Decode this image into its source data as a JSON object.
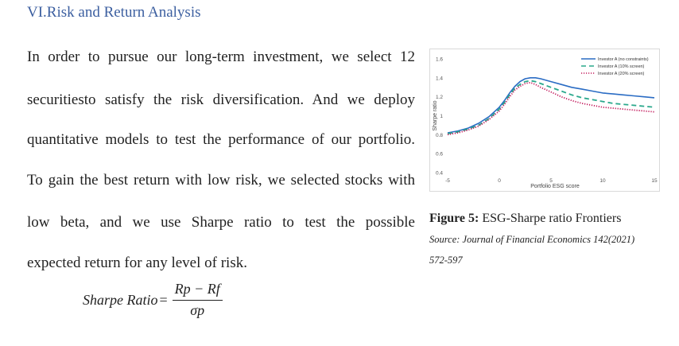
{
  "heading": "VI.Risk and Return Analysis",
  "paragraph_lines": [
    "In order to pursue our long-term investment, we select 12",
    "securitiesto satisfy the risk diversification. And we deploy",
    "quantitative models to test the performance of our portfolio.",
    "To gain the best return with low risk, we selected stocks with",
    "low beta, and we use Sharpe ratio to test the possible",
    "expected return for any level of risk."
  ],
  "formula": {
    "lhs": "Sharpe Ratio",
    "equals": "=",
    "numerator": "Rp − Rf",
    "denominator": "σp"
  },
  "figure": {
    "caption_label": "Figure 5:",
    "caption_text": " ESG-Sharpe ratio Frontiers",
    "source_line1": "Source: Journal of Financial Economics 142(2021)",
    "source_line2": "572-597"
  },
  "chart_data": {
    "type": "line",
    "xlabel": "Portfolio ESG score",
    "ylabel": "Sharpe ratio",
    "xlim": [
      -5,
      15
    ],
    "ylim": [
      0.4,
      1.6
    ],
    "x_ticks": [
      "-5",
      "0",
      "5",
      "10",
      "15"
    ],
    "y_ticks": [
      "0.4",
      "0.6",
      "0.8",
      "1",
      "1.2",
      "1.4",
      "1.6"
    ],
    "legend_position": "top-right",
    "grid": false,
    "series": [
      {
        "name": "Investor A (no constraints)",
        "color": "#2a6cc4",
        "dash": "solid",
        "x": [
          -5,
          -4,
          -3,
          -2,
          -1,
          0,
          0.5,
          1,
          1.5,
          2,
          2.5,
          3,
          3.5,
          4,
          5,
          6,
          7,
          8,
          9,
          10,
          11,
          12,
          13,
          14,
          15
        ],
        "y": [
          0.82,
          0.84,
          0.87,
          0.92,
          0.99,
          1.09,
          1.16,
          1.24,
          1.31,
          1.36,
          1.39,
          1.4,
          1.4,
          1.39,
          1.36,
          1.33,
          1.3,
          1.28,
          1.26,
          1.24,
          1.23,
          1.22,
          1.21,
          1.2,
          1.19
        ]
      },
      {
        "name": "Investor A (10% screen)",
        "color": "#2aa88c",
        "dash": "dashed",
        "x": [
          -5,
          -4,
          -3,
          -2,
          -1,
          0,
          0.5,
          1,
          1.5,
          2,
          2.5,
          3,
          3.5,
          4,
          5,
          6,
          7,
          8,
          9,
          10,
          11,
          12,
          13,
          14,
          15
        ],
        "y": [
          0.81,
          0.83,
          0.86,
          0.9,
          0.97,
          1.07,
          1.14,
          1.22,
          1.29,
          1.33,
          1.36,
          1.37,
          1.36,
          1.34,
          1.3,
          1.26,
          1.22,
          1.19,
          1.17,
          1.15,
          1.13,
          1.12,
          1.11,
          1.1,
          1.09
        ]
      },
      {
        "name": "Investor A (20% screen)",
        "color": "#c2185b",
        "dash": "dotted",
        "x": [
          -5,
          -4,
          -3,
          -2,
          -1,
          0,
          0.5,
          1,
          1.5,
          2,
          2.5,
          3,
          3.5,
          4,
          5,
          6,
          7,
          8,
          9,
          10,
          11,
          12,
          13,
          14,
          15
        ],
        "y": [
          0.8,
          0.82,
          0.85,
          0.89,
          0.96,
          1.05,
          1.12,
          1.2,
          1.27,
          1.31,
          1.34,
          1.35,
          1.33,
          1.3,
          1.25,
          1.2,
          1.16,
          1.13,
          1.11,
          1.09,
          1.08,
          1.07,
          1.06,
          1.05,
          1.04
        ]
      }
    ]
  }
}
